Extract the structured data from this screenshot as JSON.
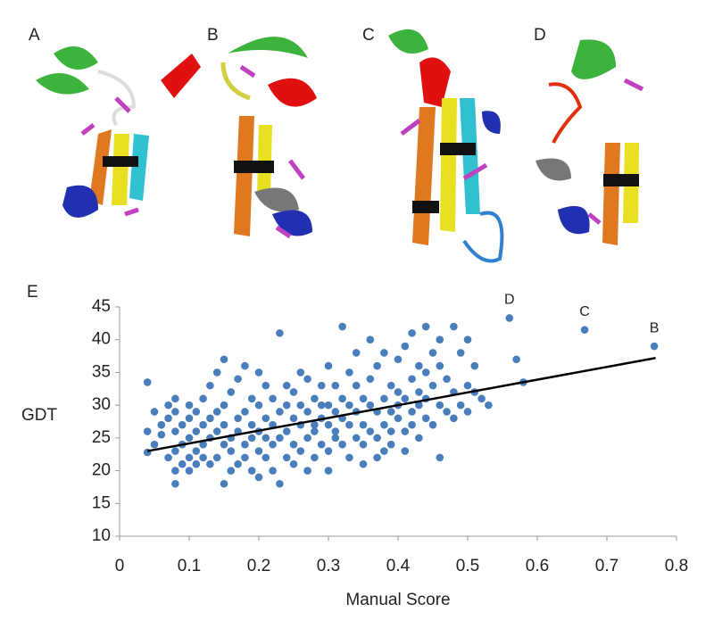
{
  "panels": [
    "A",
    "B",
    "C",
    "D"
  ],
  "chart_data": {
    "type": "scatter",
    "label": "E",
    "xlabel": "Manual Score",
    "ylabel": "GDT",
    "color": "#4a7ebb",
    "x": [
      0.04,
      0.04,
      0.04,
      0.05,
      0.05,
      0.06,
      0.06,
      0.07,
      0.07,
      0.07,
      0.08,
      0.08,
      0.08,
      0.08,
      0.08,
      0.08,
      0.09,
      0.09,
      0.09,
      0.1,
      0.1,
      0.1,
      0.1,
      0.1,
      0.11,
      0.11,
      0.11,
      0.11,
      0.12,
      0.12,
      0.12,
      0.12,
      0.13,
      0.13,
      0.13,
      0.13,
      0.14,
      0.14,
      0.14,
      0.14,
      0.15,
      0.15,
      0.15,
      0.15,
      0.15,
      0.16,
      0.16,
      0.16,
      0.16,
      0.17,
      0.17,
      0.17,
      0.17,
      0.18,
      0.18,
      0.18,
      0.18,
      0.19,
      0.19,
      0.19,
      0.19,
      0.2,
      0.2,
      0.2,
      0.2,
      0.2,
      0.21,
      0.21,
      0.21,
      0.21,
      0.22,
      0.22,
      0.22,
      0.22,
      0.23,
      0.23,
      0.23,
      0.23,
      0.24,
      0.24,
      0.24,
      0.24,
      0.25,
      0.25,
      0.25,
      0.25,
      0.26,
      0.26,
      0.26,
      0.26,
      0.27,
      0.27,
      0.27,
      0.27,
      0.28,
      0.28,
      0.28,
      0.28,
      0.29,
      0.29,
      0.29,
      0.29,
      0.3,
      0.3,
      0.3,
      0.3,
      0.3,
      0.31,
      0.31,
      0.31,
      0.31,
      0.32,
      0.32,
      0.32,
      0.32,
      0.33,
      0.33,
      0.33,
      0.33,
      0.34,
      0.34,
      0.34,
      0.34,
      0.35,
      0.35,
      0.35,
      0.35,
      0.36,
      0.36,
      0.36,
      0.36,
      0.37,
      0.37,
      0.37,
      0.37,
      0.38,
      0.38,
      0.38,
      0.38,
      0.39,
      0.39,
      0.39,
      0.39,
      0.4,
      0.4,
      0.4,
      0.4,
      0.41,
      0.41,
      0.41,
      0.41,
      0.42,
      0.42,
      0.42,
      0.42,
      0.43,
      0.43,
      0.43,
      0.43,
      0.44,
      0.44,
      0.44,
      0.44,
      0.45,
      0.45,
      0.45,
      0.46,
      0.46,
      0.46,
      0.46,
      0.47,
      0.47,
      0.48,
      0.48,
      0.48,
      0.49,
      0.49,
      0.5,
      0.5,
      0.5,
      0.51,
      0.51,
      0.52,
      0.53,
      0.56,
      0.57,
      0.58,
      0.668,
      0.768
    ],
    "values": [
      33.5,
      26,
      22.8,
      29,
      24,
      27,
      25.5,
      22,
      28,
      30,
      18,
      20,
      23,
      26,
      29,
      31,
      21,
      24,
      27,
      22,
      25,
      28,
      30,
      20,
      23,
      26,
      29,
      21,
      24,
      27,
      31,
      22,
      25,
      28,
      33,
      21,
      22,
      26,
      29,
      35,
      18,
      24,
      27,
      30,
      37,
      23,
      25,
      32,
      20,
      21,
      26,
      28,
      34,
      24,
      29,
      36,
      22,
      20,
      27,
      31,
      25,
      23,
      26,
      30,
      35,
      19,
      22,
      28,
      33,
      25,
      24,
      27,
      31,
      20,
      18,
      41,
      25,
      29,
      22,
      26,
      30,
      33,
      24,
      28,
      32,
      21,
      27,
      30,
      35,
      23,
      25,
      29,
      34,
      20,
      22,
      27,
      31,
      26,
      24,
      28,
      33,
      30,
      23,
      27,
      30,
      36,
      20,
      26,
      29,
      33,
      25,
      24,
      28,
      42,
      31,
      22,
      27,
      30,
      35,
      25,
      29,
      33,
      38,
      21,
      27,
      31,
      24,
      26,
      30,
      34,
      40,
      22,
      25,
      29,
      36,
      27,
      31,
      38,
      23,
      24,
      29,
      33,
      26,
      28,
      32,
      37,
      30,
      26,
      31,
      39,
      23,
      29,
      34,
      41,
      27,
      25,
      32,
      36,
      30,
      28,
      35,
      42,
      31,
      27,
      33,
      38,
      22,
      30,
      36,
      40,
      29,
      34,
      28,
      42,
      32,
      30,
      38,
      29,
      40,
      33,
      32,
      36,
      31,
      30,
      43.3,
      37,
      33.5,
      41.5,
      39
    ],
    "trendline": {
      "x": [
        0.04,
        0.77
      ],
      "values": [
        23,
        37.2
      ],
      "color": "#000000"
    },
    "annotations": [
      {
        "text": "D",
        "x": 0.56,
        "y": 43.3
      },
      {
        "text": "C",
        "x": 0.668,
        "y": 41.5
      },
      {
        "text": "B",
        "x": 0.768,
        "y": 39
      }
    ],
    "xlim": [
      0,
      0.8
    ],
    "xticks": [
      0,
      0.1,
      0.2,
      0.3,
      0.4,
      0.5,
      0.6,
      0.7,
      0.8
    ],
    "ylim": [
      10,
      45
    ],
    "yticks": [
      10,
      15,
      20,
      25,
      30,
      35,
      40,
      45
    ]
  }
}
